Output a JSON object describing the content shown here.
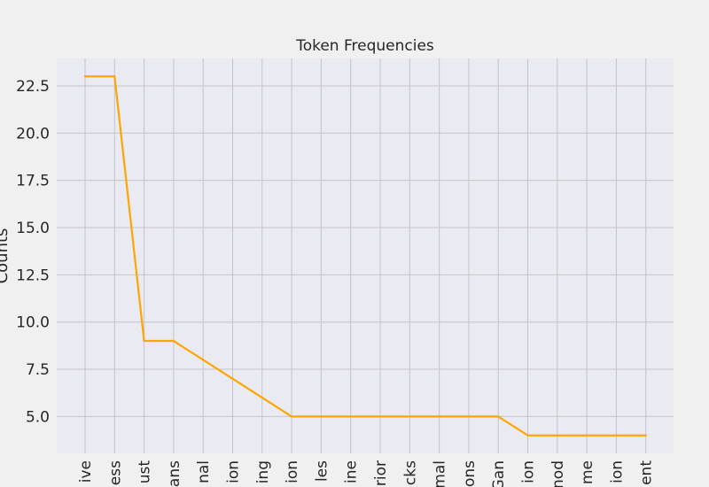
{
  "chart_data": {
    "type": "line",
    "title": "Token Frequencies",
    "xlabel": "",
    "ylabel": "Counts",
    "categories": [
      "ive",
      "ess",
      "ust",
      "ans",
      "nal",
      "ion",
      "ing",
      "ion",
      "les",
      "ine",
      "rior",
      "cks",
      "mal",
      "ons",
      "Gan",
      "ion",
      "nod",
      "me",
      "ion",
      "ent"
    ],
    "series": [
      {
        "values": [
          23,
          23,
          9,
          9,
          8,
          7,
          6,
          5,
          5,
          5,
          5,
          5,
          5,
          5,
          5,
          4,
          4,
          4,
          4,
          4
        ]
      }
    ],
    "yticks": [
      "5.0",
      "7.5",
      "10.0",
      "12.5",
      "15.0",
      "17.5",
      "20.0",
      "22.5"
    ],
    "ylim": [
      3.05,
      23.95
    ],
    "grid": true,
    "legend": "none",
    "colors": {
      "line": "#ffa500",
      "plot_background": "#eaeaf2",
      "figure_background": "#f0f0f0",
      "grid": "#c4c4c8"
    }
  }
}
